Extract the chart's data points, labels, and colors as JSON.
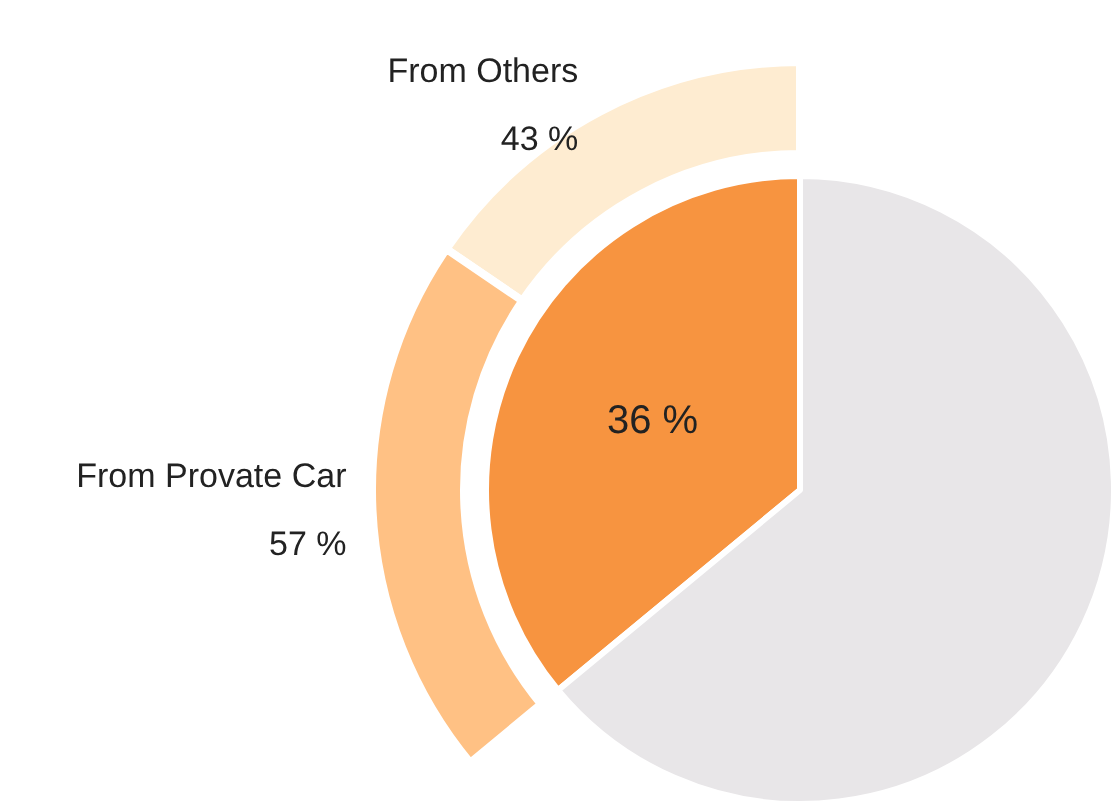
{
  "chart_data": [
    {
      "type": "pie",
      "categories": [
        null,
        null
      ],
      "values": [
        36,
        64
      ],
      "colors": [
        "#f79440",
        "#e8e6e8"
      ],
      "value_labels": [
        "36 %",
        null
      ]
    },
    {
      "type": "donut",
      "categories": [
        "From Others",
        "From Provate Car"
      ],
      "values": [
        43,
        57
      ],
      "colors": [
        "#feecd1",
        "#ffc184"
      ],
      "value_labels": [
        "43 %",
        "57 %"
      ]
    }
  ]
}
